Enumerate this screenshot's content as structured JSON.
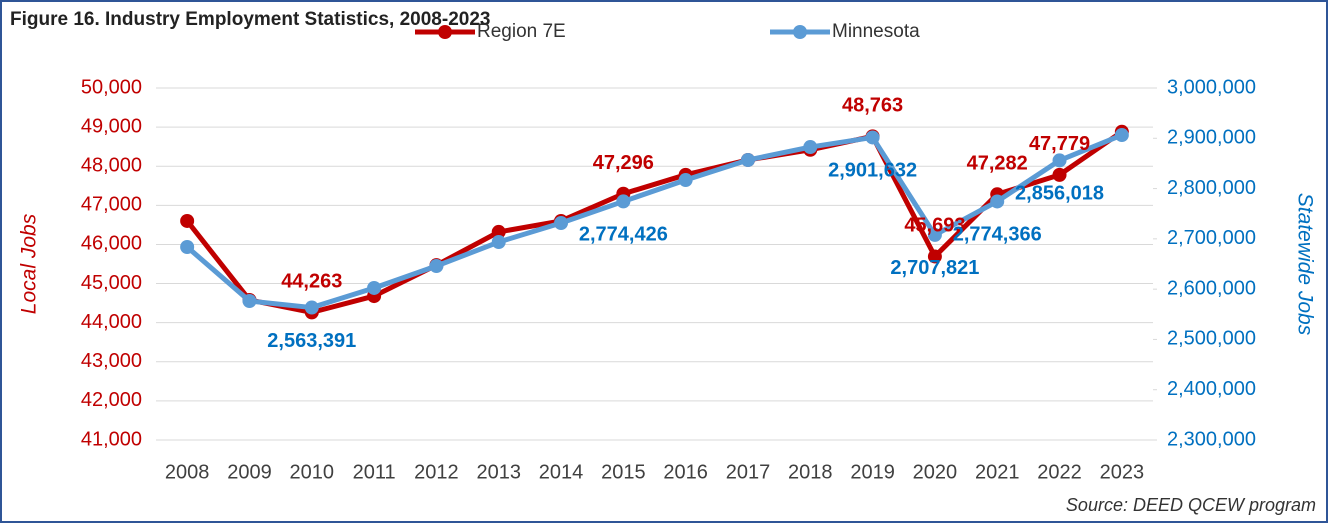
{
  "chart_data": {
    "type": "line",
    "title": "Figure 16. Industry Employment Statistics, 2008-2023",
    "ylabel": "Local Jobs",
    "y2label": "Statewide Jobs",
    "source": "Source: DEED QCEW program",
    "categories": [
      "2008",
      "2009",
      "2010",
      "2011",
      "2012",
      "2013",
      "2014",
      "2015",
      "2016",
      "2017",
      "2018",
      "2019",
      "2020",
      "2021",
      "2022",
      "2023"
    ],
    "series": [
      {
        "name": "Region 7E",
        "color": "#c00000",
        "label_color": "#c00000",
        "values": [
          46600,
          44580,
          44263,
          44680,
          45470,
          46320,
          46600,
          47296,
          47780,
          48160,
          48420,
          48763,
          45693,
          47282,
          47779,
          48880
        ],
        "value_labels": [
          null,
          null,
          "44,263",
          null,
          null,
          null,
          null,
          "47,296",
          null,
          null,
          null,
          "48,763",
          "45,693",
          "47,282",
          "47,779",
          null
        ]
      },
      {
        "name": "Minnesota",
        "color": "#5b9bd5",
        "label_color": "#0070c0",
        "axis": "y2",
        "values": [
          2683800,
          2576400,
          2563391,
          2602300,
          2646000,
          2693700,
          2731500,
          2774426,
          2817000,
          2856800,
          2882600,
          2901632,
          2707821,
          2774366,
          2856018,
          2906500
        ],
        "value_labels": [
          null,
          null,
          "2,563,391",
          null,
          null,
          null,
          null,
          "2,774,426",
          null,
          null,
          null,
          "2,901,632",
          "2,707,821",
          "2,774,366",
          "2,856,018",
          null
        ]
      }
    ],
    "ylim": [
      41000,
      50000
    ],
    "yticks": [
      {
        "value": 41000,
        "label": "41,000"
      },
      {
        "value": 42000,
        "label": "42,000"
      },
      {
        "value": 43000,
        "label": "43,000"
      },
      {
        "value": 44000,
        "label": "44,000"
      },
      {
        "value": 45000,
        "label": "45,000"
      },
      {
        "value": 46000,
        "label": "46,000"
      },
      {
        "value": 47000,
        "label": "47,000"
      },
      {
        "value": 48000,
        "label": "48,000"
      },
      {
        "value": 49000,
        "label": "49,000"
      },
      {
        "value": 50000,
        "label": "50,000"
      }
    ],
    "y2lim": [
      2300000,
      3000000
    ],
    "y2ticks": [
      {
        "value": 2300000,
        "label": "2,300,000"
      },
      {
        "value": 2400000,
        "label": "2,400,000"
      },
      {
        "value": 2500000,
        "label": "2,500,000"
      },
      {
        "value": 2600000,
        "label": "2,600,000"
      },
      {
        "value": 2700000,
        "label": "2,700,000"
      },
      {
        "value": 2800000,
        "label": "2,800,000"
      },
      {
        "value": 2900000,
        "label": "2,900,000"
      },
      {
        "value": 3000000,
        "label": "3,000,000"
      }
    ],
    "grid": true,
    "legend": "top"
  }
}
